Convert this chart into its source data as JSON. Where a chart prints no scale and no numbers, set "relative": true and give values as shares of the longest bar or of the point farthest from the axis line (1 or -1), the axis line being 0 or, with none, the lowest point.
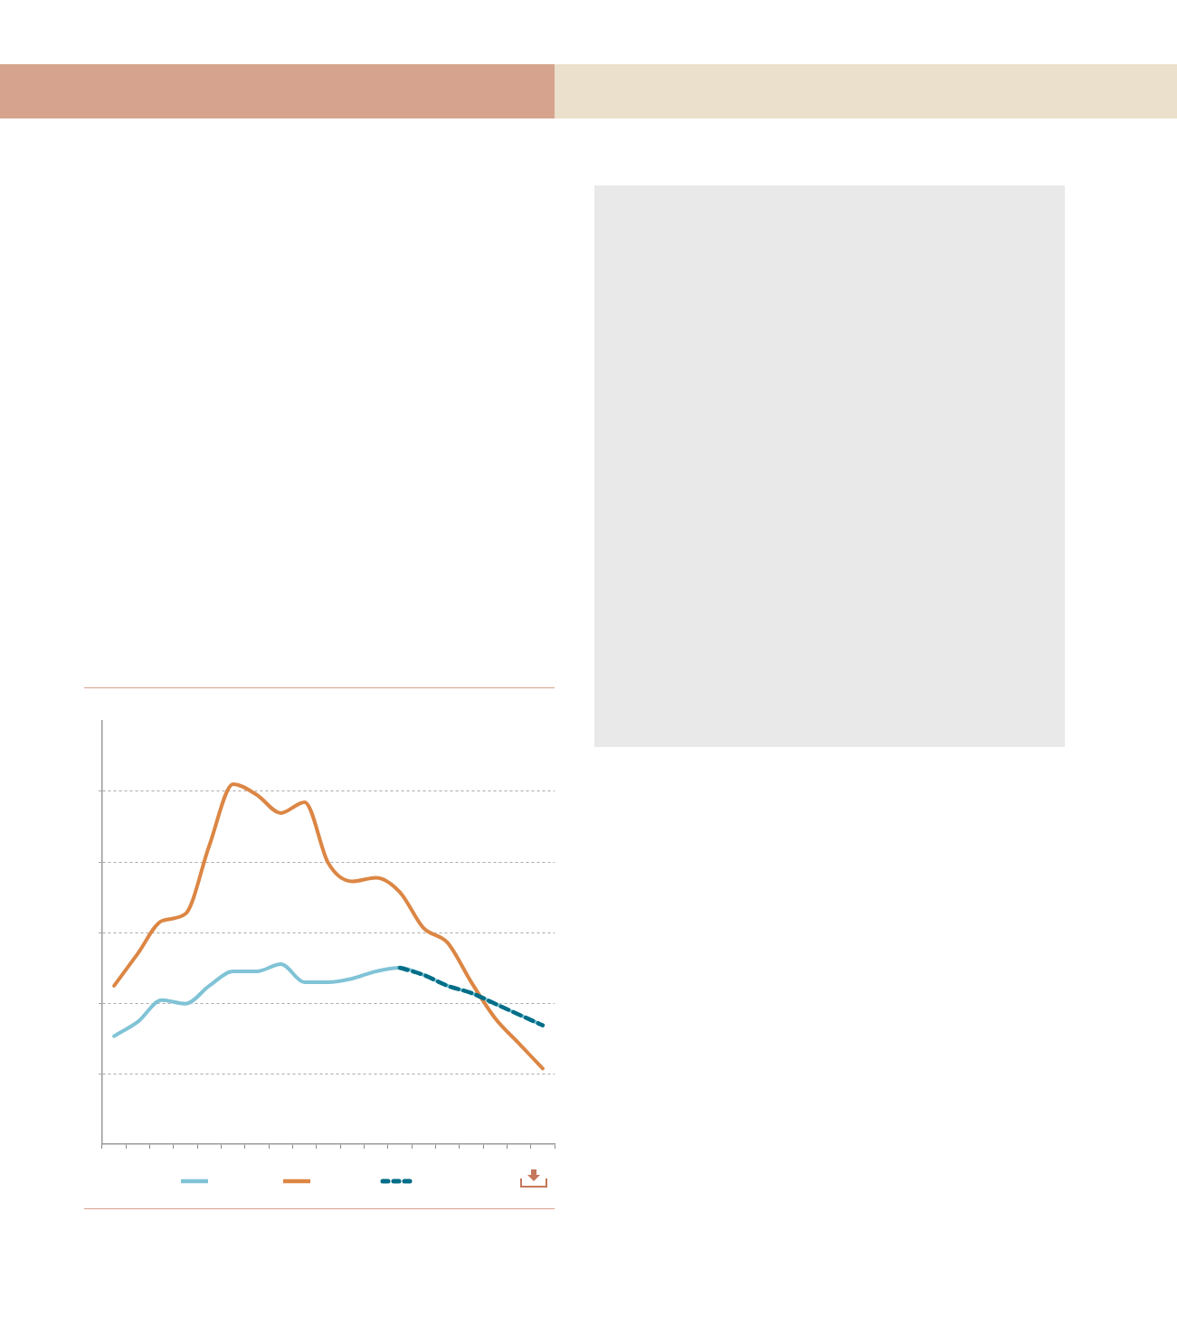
{
  "chart_data": {
    "type": "line",
    "relative": true,
    "categories": [
      null,
      null,
      null,
      null,
      null,
      null,
      null,
      null,
      null,
      null,
      null,
      null,
      null,
      null,
      null,
      null,
      null,
      null,
      null
    ],
    "series": [
      {
        "color": "#80c3d6",
        "values": [
          0.3,
          0.34,
          0.4,
          0.39,
          0.44,
          0.48,
          0.48,
          0.5,
          0.45,
          0.45,
          0.46,
          0.48,
          0.49,
          0.47,
          0.44,
          0.42,
          0.39,
          0.36,
          0.33
        ]
      },
      {
        "color": "#dc8644",
        "values": [
          0.44,
          0.53,
          0.62,
          0.64,
          0.83,
          1,
          0.97,
          0.92,
          0.95,
          0.78,
          0.73,
          0.74,
          0.7,
          0.6,
          0.56,
          0.45,
          0.35,
          0.28,
          0.21
        ]
      },
      {
        "color": "#006e88",
        "line_style": "dashed",
        "values": [
          null,
          null,
          null,
          null,
          null,
          null,
          null,
          null,
          null,
          null,
          null,
          null,
          0.49,
          0.47,
          0.44,
          0.42,
          0.39,
          0.36,
          0.33
        ]
      }
    ],
    "grid": "y",
    "marker": "none",
    "line_style": "solid"
  }
}
